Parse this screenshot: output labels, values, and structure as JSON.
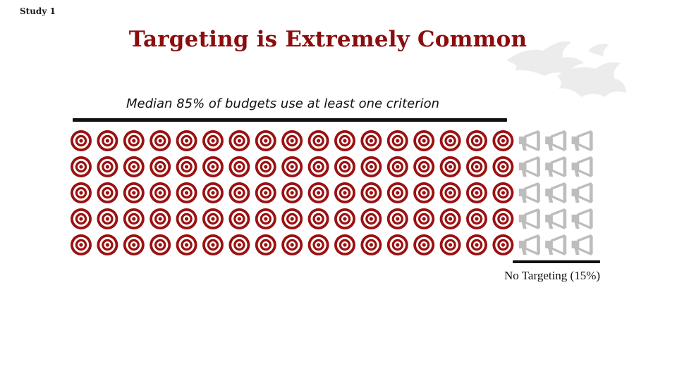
{
  "slide": {
    "study_label": "Study 1",
    "title": "Targeting is Extremely Common",
    "targeted_caption": "Median 85% of budgets use at least one criterion",
    "no_targeting_caption": "No Targeting (15%)"
  },
  "colors": {
    "title": "#8b0d0d",
    "target_icon": "#9b1111",
    "megaphone_icon": "#bdbdbd",
    "bracket": "#111111",
    "decor": "#ececec"
  },
  "icons": {
    "targeted": "target-icon",
    "untargeted": "megaphone-icon",
    "decor": "dragon-silhouette-icon"
  },
  "chart_data": {
    "type": "waffle",
    "rows": 5,
    "columns": 20,
    "series": [
      {
        "name": "Median 85% of budgets use at least one criterion",
        "value": 85,
        "icons_per_row": 17,
        "icon": "target-icon"
      },
      {
        "name": "No Targeting (15%)",
        "value": 15,
        "icons_per_row": 3,
        "icon": "megaphone-icon"
      }
    ]
  }
}
